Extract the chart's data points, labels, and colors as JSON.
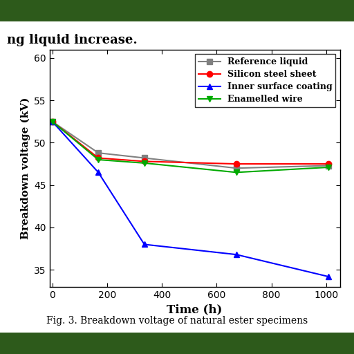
{
  "x": [
    0,
    168,
    336,
    672,
    1008
  ],
  "series": {
    "Reference liquid": {
      "y": [
        52.5,
        48.8,
        48.2,
        47.0,
        47.3
      ],
      "color": "#808080",
      "marker": "s",
      "linestyle": "-"
    },
    "Silicon steel sheet": {
      "y": [
        52.5,
        48.2,
        47.8,
        47.5,
        47.5
      ],
      "color": "#ff0000",
      "marker": "o",
      "linestyle": "-"
    },
    "Inner surface coating": {
      "y": [
        52.5,
        46.5,
        38.0,
        36.8,
        34.2
      ],
      "color": "#0000ff",
      "marker": "^",
      "linestyle": "-"
    },
    "Enamelled wire": {
      "y": [
        52.5,
        48.0,
        47.6,
        46.5,
        47.1
      ],
      "color": "#00aa00",
      "marker": "v",
      "linestyle": "-"
    }
  },
  "xlabel": "Time (h)",
  "ylabel": "Breakdown voltage (kV)",
  "xlim": [
    -10,
    1050
  ],
  "ylim": [
    33,
    61
  ],
  "xticks": [
    0,
    200,
    400,
    600,
    800,
    1000
  ],
  "yticks": [
    35,
    40,
    45,
    50,
    55,
    60
  ],
  "legend_order": [
    "Reference liquid",
    "Silicon steel sheet",
    "Inner surface coating",
    "Enamelled wire"
  ],
  "page_bg": "#2d5a1b",
  "content_bg": "#ffffff",
  "figure_text": "Fig. 3. Breakdown voltage of natural ester specimens",
  "header_text": "ng liquid increase."
}
